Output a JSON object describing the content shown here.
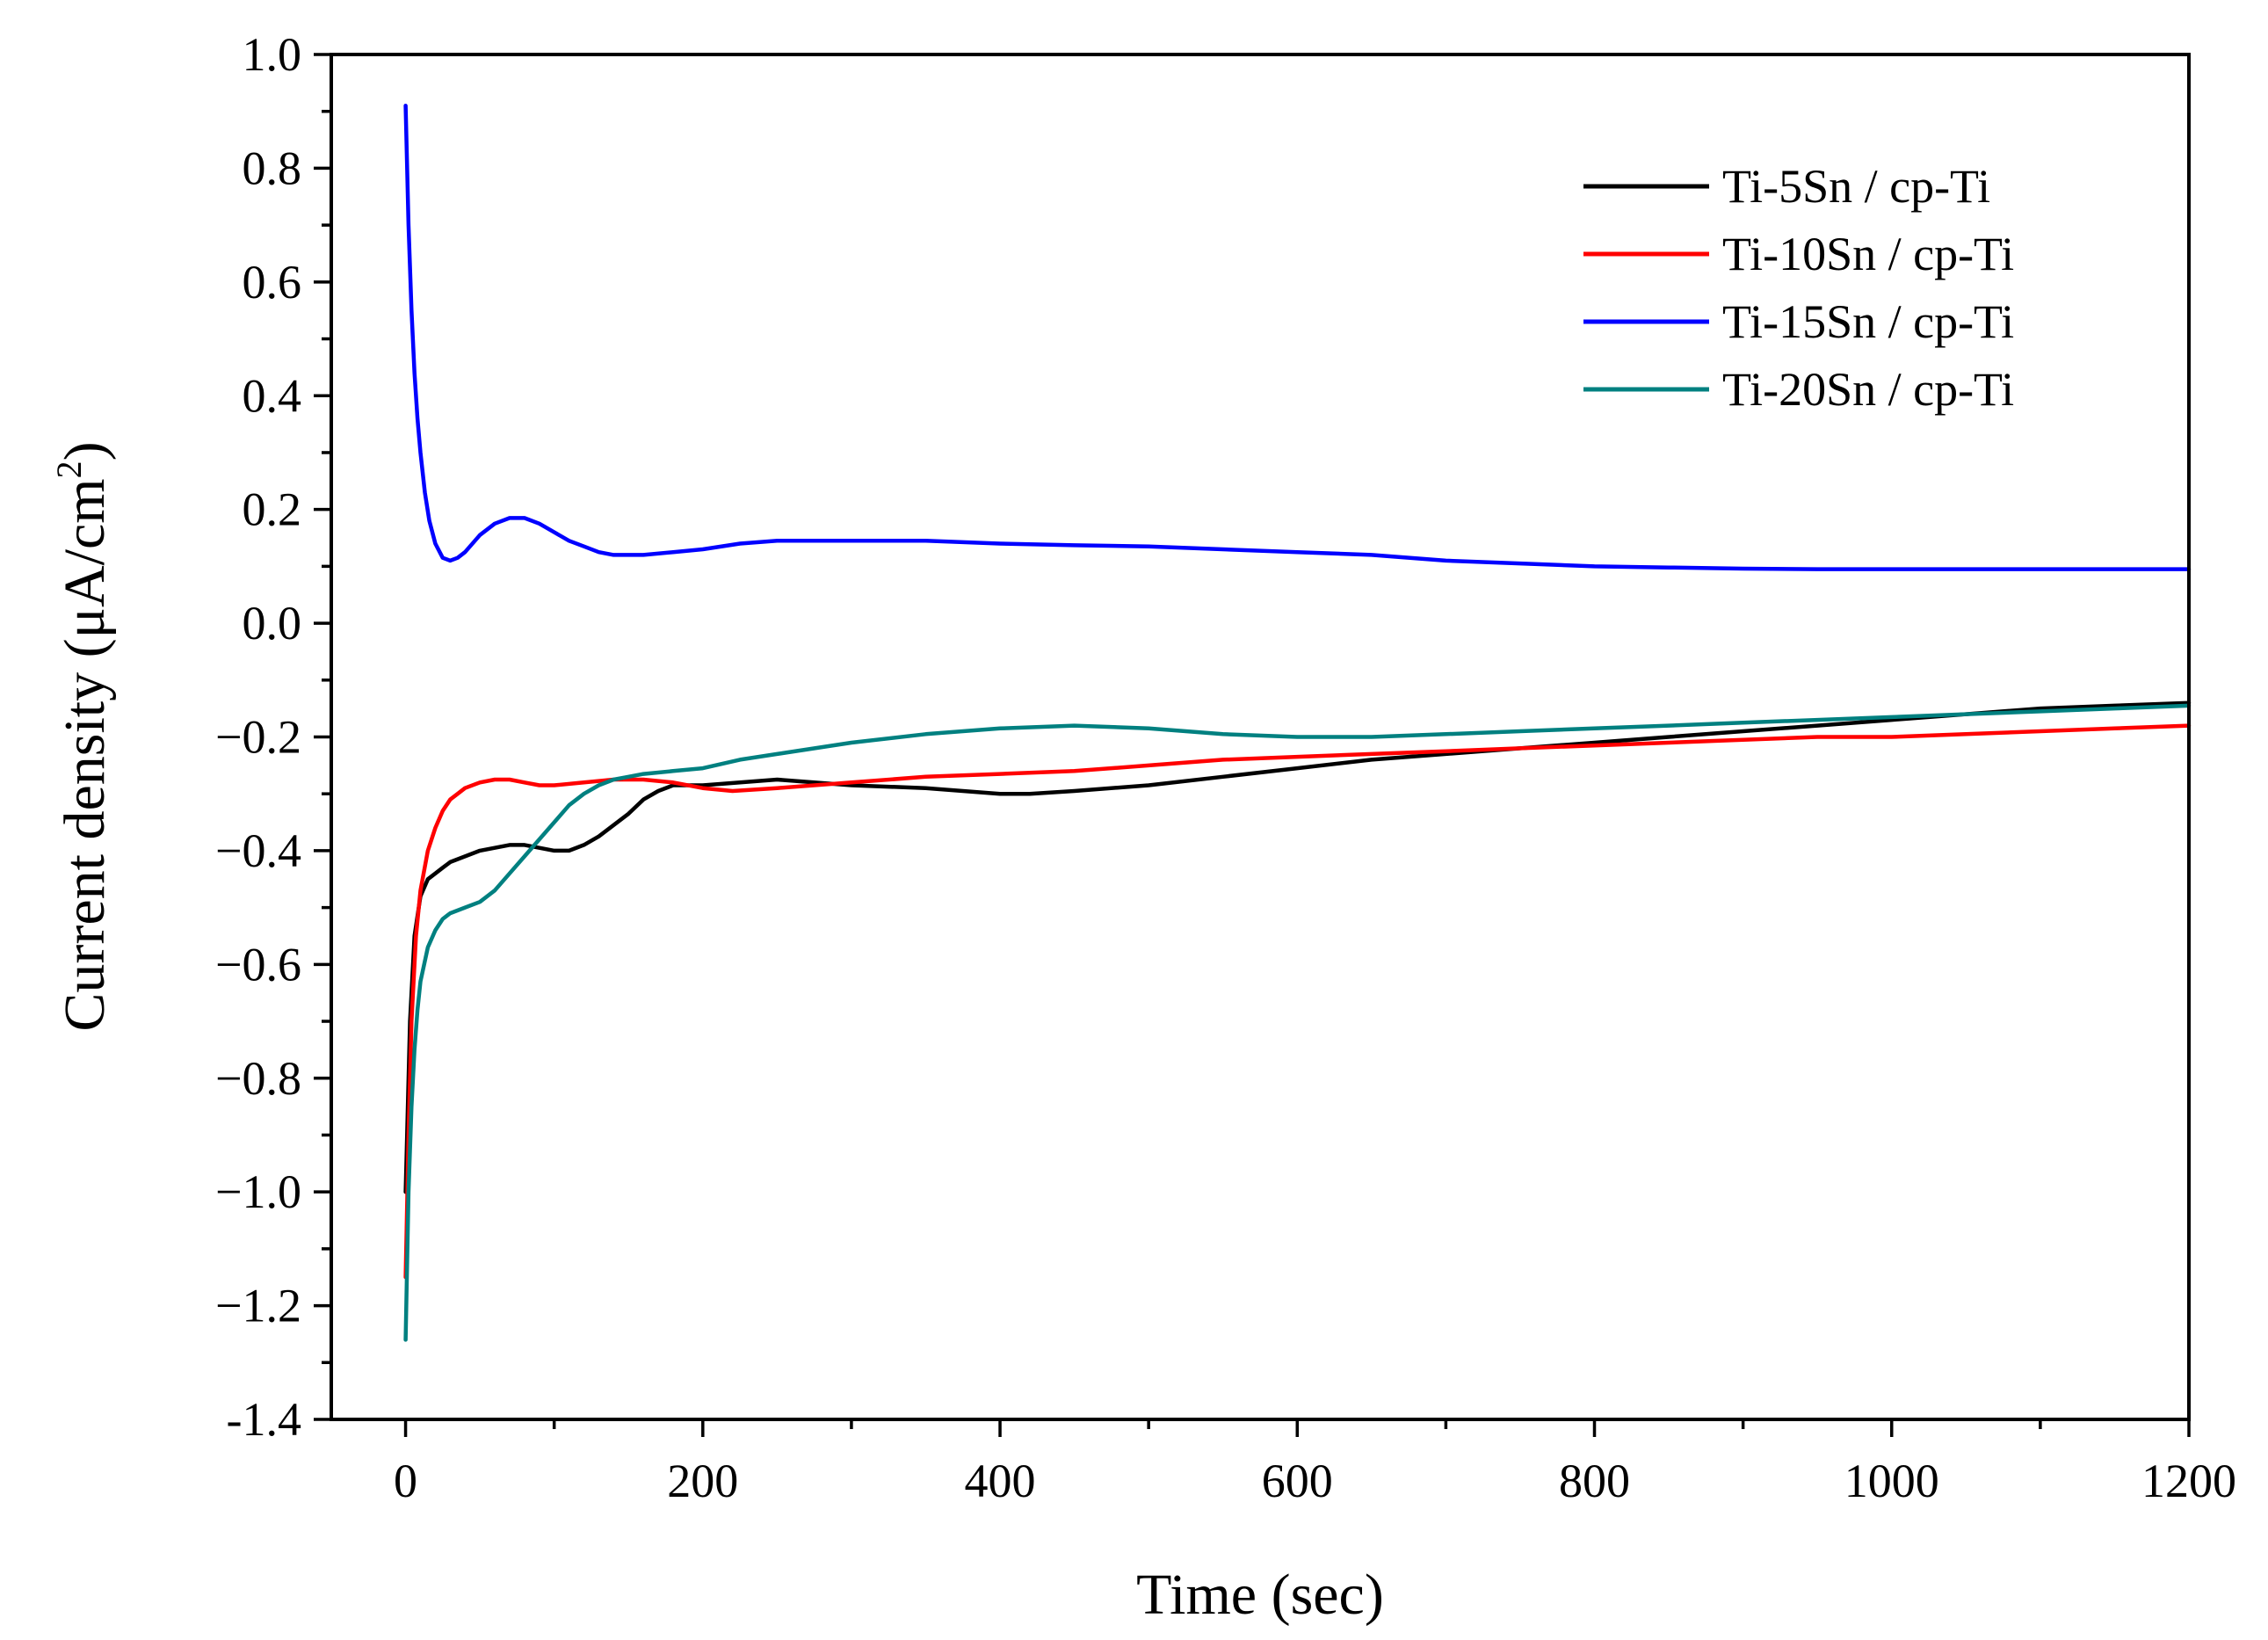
{
  "chart_data": {
    "type": "line",
    "title": "",
    "xlabel": "Time (sec)",
    "ylabel_main": "Current density (μA/cm",
    "ylabel_sup": "2",
    "ylabel_close": ")",
    "xlim": [
      -50,
      1200
    ],
    "ylim": [
      -1.4,
      1.0
    ],
    "x_ticks": [
      {
        "value": 0,
        "label": "0"
      },
      {
        "value": 200,
        "label": "200"
      },
      {
        "value": 400,
        "label": "400"
      },
      {
        "value": 600,
        "label": "600"
      },
      {
        "value": 800,
        "label": "800"
      },
      {
        "value": 1000,
        "label": "1000"
      },
      {
        "value": 1200,
        "label": "1200"
      }
    ],
    "x_minor_ticks": [
      100,
      300,
      500,
      700,
      900,
      1100
    ],
    "y_ticks": [
      {
        "value": 1.0,
        "label": "1.0"
      },
      {
        "value": 0.8,
        "label": "0.8"
      },
      {
        "value": 0.6,
        "label": "0.6"
      },
      {
        "value": 0.4,
        "label": "0.4"
      },
      {
        "value": 0.2,
        "label": "0.2"
      },
      {
        "value": 0.0,
        "label": "0.0"
      },
      {
        "value": -0.2,
        "label": "−0.2"
      },
      {
        "value": -0.4,
        "label": "−0.4"
      },
      {
        "value": -0.6,
        "label": "−0.6"
      },
      {
        "value": -0.8,
        "label": "−0.8"
      },
      {
        "value": -1.0,
        "label": "−1.0"
      },
      {
        "value": -1.2,
        "label": "−1.2"
      },
      {
        "value": -1.4,
        "label": "-1.4"
      }
    ],
    "y_minor_ticks": [
      0.9,
      0.7,
      0.5,
      0.3,
      0.1,
      -0.1,
      -0.3,
      -0.5,
      -0.7,
      -0.9,
      -1.1,
      -1.3
    ],
    "legend_position": "top-right",
    "series": [
      {
        "name": "Ti-5Sn / cp-Ti",
        "color": "#000000",
        "x": [
          0,
          3,
          6,
          10,
          15,
          20,
          25,
          30,
          40,
          50,
          60,
          70,
          80,
          90,
          100,
          110,
          120,
          130,
          140,
          150,
          160,
          170,
          180,
          190,
          200,
          225,
          250,
          275,
          300,
          350,
          400,
          420,
          450,
          500,
          550,
          600,
          650,
          700,
          750,
          800,
          850,
          900,
          950,
          1000,
          1050,
          1100,
          1150,
          1200
        ],
        "y": [
          -1.0,
          -0.7,
          -0.55,
          -0.48,
          -0.45,
          -0.44,
          -0.43,
          -0.42,
          -0.41,
          -0.4,
          -0.395,
          -0.39,
          -0.39,
          -0.395,
          -0.4,
          -0.4,
          -0.39,
          -0.375,
          -0.355,
          -0.335,
          -0.31,
          -0.295,
          -0.285,
          -0.285,
          -0.285,
          -0.28,
          -0.275,
          -0.28,
          -0.285,
          -0.29,
          -0.3,
          -0.3,
          -0.295,
          -0.285,
          -0.27,
          -0.255,
          -0.24,
          -0.23,
          -0.22,
          -0.21,
          -0.2,
          -0.19,
          -0.18,
          -0.17,
          -0.16,
          -0.15,
          -0.145,
          -0.14
        ]
      },
      {
        "name": "Ti-10Sn / cp-Ti",
        "color": "#ff0000",
        "x": [
          0,
          2,
          4,
          7,
          10,
          15,
          20,
          25,
          30,
          35,
          40,
          50,
          60,
          70,
          80,
          90,
          100,
          120,
          140,
          160,
          180,
          200,
          220,
          250,
          300,
          350,
          400,
          450,
          500,
          550,
          600,
          650,
          700,
          750,
          800,
          850,
          900,
          950,
          1000,
          1050,
          1100,
          1150,
          1200
        ],
        "y": [
          -1.15,
          -0.9,
          -0.7,
          -0.55,
          -0.47,
          -0.4,
          -0.36,
          -0.33,
          -0.31,
          -0.3,
          -0.29,
          -0.28,
          -0.275,
          -0.275,
          -0.28,
          -0.285,
          -0.285,
          -0.28,
          -0.275,
          -0.275,
          -0.28,
          -0.29,
          -0.295,
          -0.29,
          -0.28,
          -0.27,
          -0.265,
          -0.26,
          -0.25,
          -0.24,
          -0.235,
          -0.23,
          -0.225,
          -0.22,
          -0.215,
          -0.21,
          -0.205,
          -0.2,
          -0.2,
          -0.195,
          -0.19,
          -0.185,
          -0.18
        ]
      },
      {
        "name": "Ti-15Sn / cp-Ti",
        "color": "#0000ff",
        "x": [
          0,
          2,
          4,
          6,
          8,
          10,
          13,
          16,
          20,
          25,
          30,
          35,
          40,
          50,
          60,
          70,
          80,
          90,
          100,
          110,
          120,
          130,
          140,
          150,
          160,
          180,
          200,
          225,
          250,
          275,
          300,
          350,
          400,
          450,
          500,
          550,
          600,
          650,
          700,
          750,
          800,
          850,
          900,
          950,
          1000,
          1050,
          1100,
          1150,
          1200
        ],
        "y": [
          0.91,
          0.7,
          0.55,
          0.44,
          0.36,
          0.3,
          0.23,
          0.18,
          0.14,
          0.115,
          0.11,
          0.115,
          0.125,
          0.155,
          0.175,
          0.185,
          0.185,
          0.175,
          0.16,
          0.145,
          0.135,
          0.125,
          0.12,
          0.12,
          0.12,
          0.125,
          0.13,
          0.14,
          0.145,
          0.145,
          0.145,
          0.145,
          0.14,
          0.137,
          0.135,
          0.13,
          0.125,
          0.12,
          0.11,
          0.105,
          0.1,
          0.098,
          0.096,
          0.095,
          0.095,
          0.095,
          0.095,
          0.095,
          0.095
        ]
      },
      {
        "name": "Ti-20Sn / cp-Ti",
        "color": "#008080",
        "x": [
          0,
          2,
          4,
          6,
          8,
          10,
          15,
          20,
          25,
          30,
          40,
          50,
          60,
          70,
          80,
          90,
          100,
          110,
          120,
          130,
          140,
          150,
          160,
          180,
          200,
          225,
          250,
          300,
          350,
          400,
          450,
          500,
          550,
          600,
          650,
          700,
          750,
          800,
          850,
          900,
          950,
          1000,
          1050,
          1100,
          1150,
          1200
        ],
        "y": [
          -1.26,
          -1.0,
          -0.85,
          -0.75,
          -0.68,
          -0.63,
          -0.57,
          -0.54,
          -0.52,
          -0.51,
          -0.5,
          -0.49,
          -0.47,
          -0.44,
          -0.41,
          -0.38,
          -0.35,
          -0.32,
          -0.3,
          -0.285,
          -0.275,
          -0.27,
          -0.265,
          -0.26,
          -0.255,
          -0.24,
          -0.23,
          -0.21,
          -0.195,
          -0.185,
          -0.18,
          -0.185,
          -0.195,
          -0.2,
          -0.2,
          -0.195,
          -0.19,
          -0.185,
          -0.18,
          -0.175,
          -0.17,
          -0.165,
          -0.16,
          -0.155,
          -0.15,
          -0.145
        ]
      }
    ]
  }
}
